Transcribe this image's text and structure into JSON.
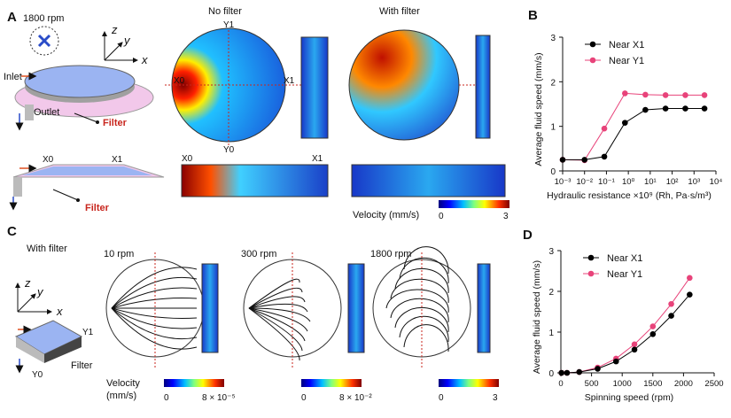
{
  "panel_a": {
    "letter": "A",
    "speed": "1800 rpm",
    "axis_z": "z",
    "axis_y": "y",
    "axis_x": "x",
    "inlet": "Inlet",
    "outlet": "Outlet",
    "filter": "Filter",
    "no_filter": "No filter",
    "with_filter": "With filter",
    "y1": "Y1",
    "y0": "Y0",
    "x0": "X0",
    "x1": "X1",
    "colorbar": {
      "label": "Velocity (mm/s)",
      "min": "0",
      "max": "3"
    }
  },
  "panel_c": {
    "letter": "C",
    "with_filter": "With filter",
    "axis_z": "z",
    "axis_y": "y",
    "axis_x": "x",
    "y1": "Y1",
    "y0": "Y0",
    "filter": "Filter",
    "speeds": [
      "10 rpm",
      "300 rpm",
      "1800 rpm"
    ],
    "velocity_label": "Velocity\n(mm/s)",
    "velocity_label_1": "Velocity",
    "velocity_label_2": "(mm/s)",
    "colorbars": [
      {
        "min": "0",
        "max": "8 × 10⁻⁵"
      },
      {
        "min": "0",
        "max": "8 × 10⁻²"
      },
      {
        "min": "0",
        "max": "3"
      }
    ]
  },
  "colors": {
    "near_x1": "#000000",
    "near_y1": "#e8437a",
    "filter": "#c8261e"
  },
  "chart_data": [
    {
      "panel": "B",
      "type": "line",
      "xlabel": "Hydraulic resistance ×10⁹ (Rh, Pa·s/m³)",
      "ylabel": "Average fluid speed (mm/s)",
      "x_scale": "log",
      "xlim": [
        0.001,
        10000
      ],
      "ylim": [
        0,
        3
      ],
      "x_ticks": [
        "10⁻³",
        "10⁻²",
        "10⁻¹",
        "10⁰",
        "10¹",
        "10²",
        "10³",
        "10⁴"
      ],
      "y_ticks": [
        "0",
        "1",
        "2",
        "3"
      ],
      "legend": "top-left",
      "x": [
        0.001,
        0.01,
        0.08,
        0.7,
        6,
        50,
        400,
        3000
      ],
      "series": [
        {
          "name": "Near X1",
          "color": "#000000",
          "values": [
            0.25,
            0.25,
            0.32,
            1.08,
            1.37,
            1.4,
            1.4,
            1.4
          ]
        },
        {
          "name": "Near Y1",
          "color": "#e8437a",
          "values": [
            0.25,
            0.24,
            0.95,
            1.74,
            1.71,
            1.7,
            1.7,
            1.7
          ]
        }
      ]
    },
    {
      "panel": "D",
      "type": "line",
      "xlabel": "Spinning speed (rpm)",
      "ylabel": "Average fluid speed (mm/s)",
      "x_scale": "linear",
      "xlim": [
        0,
        2500
      ],
      "ylim": [
        0,
        3
      ],
      "x_ticks": [
        "0",
        "500",
        "1000",
        "1500",
        "2000",
        "2500"
      ],
      "y_ticks": [
        "0",
        "1",
        "2",
        "3"
      ],
      "legend": "top-left",
      "x": [
        10,
        100,
        300,
        600,
        900,
        1200,
        1500,
        1800,
        2100
      ],
      "series": [
        {
          "name": "Near X1",
          "color": "#000000",
          "values": [
            0,
            0,
            0.02,
            0.1,
            0.28,
            0.57,
            0.95,
            1.4,
            1.92
          ]
        },
        {
          "name": "Near Y1",
          "color": "#e8437a",
          "values": [
            0,
            0,
            0.02,
            0.13,
            0.35,
            0.7,
            1.14,
            1.69,
            2.33
          ]
        }
      ]
    }
  ]
}
